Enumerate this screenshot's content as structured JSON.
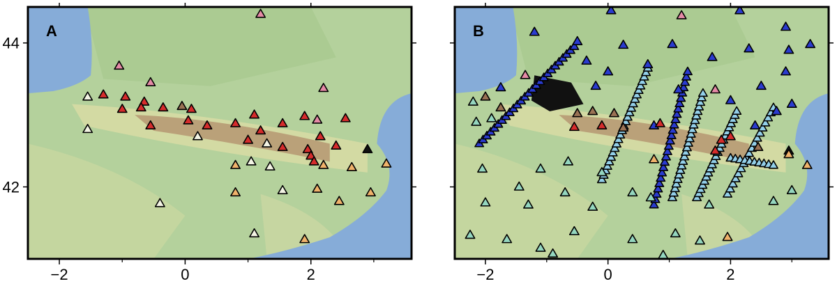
{
  "figure": {
    "colors": {
      "sea": "#86acd8",
      "lowland": "#b4d19c",
      "plain": "#a7c98f",
      "hills": "#d8dca5",
      "mountain": "#b79a74",
      "frame": "#000000"
    }
  },
  "panels": [
    {
      "id": "A",
      "label": "A",
      "x_ticks": [
        "−2",
        "0",
        "2"
      ],
      "y_ticks": [
        "44",
        "42"
      ],
      "x_tick_values": [
        -2,
        0,
        2
      ],
      "y_tick_values": [
        44,
        42
      ],
      "xlim": [
        -2.5,
        3.6
      ],
      "ylim": [
        41.0,
        44.5
      ],
      "stations": [
        {
          "lon": 1.2,
          "lat": 44.4,
          "c": "pink"
        },
        {
          "lon": -1.05,
          "lat": 43.68,
          "c": "pink"
        },
        {
          "lon": -0.55,
          "lat": 43.45,
          "c": "pink"
        },
        {
          "lon": 2.2,
          "lat": 43.37,
          "c": "pink"
        },
        {
          "lon": -1.55,
          "lat": 43.25,
          "c": "white"
        },
        {
          "lon": -1.3,
          "lat": 43.28,
          "c": "red"
        },
        {
          "lon": -0.95,
          "lat": 43.25,
          "c": "red"
        },
        {
          "lon": -0.65,
          "lat": 43.18,
          "c": "red"
        },
        {
          "lon": -1.0,
          "lat": 43.08,
          "c": "red"
        },
        {
          "lon": -0.7,
          "lat": 43.1,
          "c": "red"
        },
        {
          "lon": -0.35,
          "lat": 43.1,
          "c": "red"
        },
        {
          "lon": -0.05,
          "lat": 43.12,
          "c": "brown"
        },
        {
          "lon": 0.1,
          "lat": 43.08,
          "c": "red"
        },
        {
          "lon": 1.1,
          "lat": 43.0,
          "c": "red"
        },
        {
          "lon": 1.9,
          "lat": 42.98,
          "c": "red"
        },
        {
          "lon": 2.1,
          "lat": 42.93,
          "c": "pink"
        },
        {
          "lon": 2.55,
          "lat": 42.95,
          "c": "red"
        },
        {
          "lon": 1.55,
          "lat": 42.88,
          "c": "red"
        },
        {
          "lon": 0.8,
          "lat": 42.88,
          "c": "red"
        },
        {
          "lon": 0.35,
          "lat": 42.85,
          "c": "red"
        },
        {
          "lon": 0.05,
          "lat": 42.92,
          "c": "red"
        },
        {
          "lon": -0.55,
          "lat": 42.85,
          "c": "red"
        },
        {
          "lon": -1.55,
          "lat": 42.8,
          "c": "white"
        },
        {
          "lon": 1.2,
          "lat": 42.78,
          "c": "red"
        },
        {
          "lon": 0.2,
          "lat": 42.7,
          "c": "white"
        },
        {
          "lon": 2.15,
          "lat": 42.7,
          "c": "red"
        },
        {
          "lon": 1.0,
          "lat": 42.65,
          "c": "red"
        },
        {
          "lon": 1.3,
          "lat": 42.6,
          "c": "white"
        },
        {
          "lon": 2.4,
          "lat": 42.57,
          "c": "red"
        },
        {
          "lon": 1.55,
          "lat": 42.55,
          "c": "red"
        },
        {
          "lon": 1.95,
          "lat": 42.52,
          "c": "red"
        },
        {
          "lon": 2.9,
          "lat": 42.52,
          "c": "black"
        },
        {
          "lon": 2.0,
          "lat": 42.43,
          "c": "red"
        },
        {
          "lon": 1.05,
          "lat": 42.35,
          "c": "white"
        },
        {
          "lon": 2.05,
          "lat": 42.35,
          "c": "red"
        },
        {
          "lon": 0.8,
          "lat": 42.3,
          "c": "orange"
        },
        {
          "lon": 1.35,
          "lat": 42.28,
          "c": "white"
        },
        {
          "lon": 2.2,
          "lat": 42.3,
          "c": "orange"
        },
        {
          "lon": 2.65,
          "lat": 42.27,
          "c": "orange"
        },
        {
          "lon": 3.2,
          "lat": 42.32,
          "c": "orange"
        },
        {
          "lon": 2.1,
          "lat": 41.97,
          "c": "orange"
        },
        {
          "lon": 0.8,
          "lat": 41.92,
          "c": "orange"
        },
        {
          "lon": 1.55,
          "lat": 41.95,
          "c": "white"
        },
        {
          "lon": 2.95,
          "lat": 41.92,
          "c": "orange"
        },
        {
          "lon": -0.4,
          "lat": 41.77,
          "c": "white"
        },
        {
          "lon": 2.45,
          "lat": 41.8,
          "c": "orange"
        },
        {
          "lon": 1.1,
          "lat": 41.35,
          "c": "white"
        },
        {
          "lon": 1.9,
          "lat": 41.27,
          "c": "orange"
        }
      ],
      "lines": []
    },
    {
      "id": "B",
      "label": "B",
      "x_ticks": [
        "−2",
        "0",
        "2"
      ],
      "y_ticks": [],
      "x_tick_values": [
        -2,
        0,
        2
      ],
      "y_tick_values": [
        44,
        42
      ],
      "xlim": [
        -2.5,
        3.6
      ],
      "ylim": [
        41.0,
        44.5
      ],
      "stations": [
        {
          "lon": 0.05,
          "lat": 44.45,
          "c": "blue"
        },
        {
          "lon": 2.15,
          "lat": 44.45,
          "c": "blue"
        },
        {
          "lon": 1.2,
          "lat": 44.38,
          "c": "pink"
        },
        {
          "lon": -1.2,
          "lat": 44.15,
          "c": "blue"
        },
        {
          "lon": -0.5,
          "lat": 44.02,
          "c": "blue"
        },
        {
          "lon": 0.25,
          "lat": 43.97,
          "c": "blue"
        },
        {
          "lon": 1.05,
          "lat": 43.98,
          "c": "blue"
        },
        {
          "lon": 2.3,
          "lat": 43.92,
          "c": "blue"
        },
        {
          "lon": 1.7,
          "lat": 43.8,
          "c": "blue"
        },
        {
          "lon": 2.9,
          "lat": 44.22,
          "c": "blue"
        },
        {
          "lon": 2.95,
          "lat": 43.9,
          "c": "blue"
        },
        {
          "lon": 3.3,
          "lat": 43.98,
          "c": "blue"
        },
        {
          "lon": 0.65,
          "lat": 43.7,
          "c": "blue"
        },
        {
          "lon": -0.35,
          "lat": 43.75,
          "c": "blue"
        },
        {
          "lon": 0.0,
          "lat": 43.6,
          "c": "blue"
        },
        {
          "lon": 2.9,
          "lat": 43.6,
          "c": "blue"
        },
        {
          "lon": -1.35,
          "lat": 43.55,
          "c": "pink"
        },
        {
          "lon": -0.2,
          "lat": 43.4,
          "c": "blue"
        },
        {
          "lon": 2.5,
          "lat": 43.4,
          "c": "blue"
        },
        {
          "lon": 1.15,
          "lat": 43.35,
          "c": "blue"
        },
        {
          "lon": -1.75,
          "lat": 43.38,
          "c": "blue"
        },
        {
          "lon": 1.75,
          "lat": 43.35,
          "c": "pink"
        },
        {
          "lon": 2.0,
          "lat": 43.2,
          "c": "blue"
        },
        {
          "lon": 3.0,
          "lat": 43.15,
          "c": "blue"
        },
        {
          "lon": 2.75,
          "lat": 43.05,
          "c": "blue"
        },
        {
          "lon": -2.2,
          "lat": 43.18,
          "c": "teal"
        },
        {
          "lon": -2.0,
          "lat": 43.25,
          "c": "brown"
        },
        {
          "lon": -1.75,
          "lat": 43.1,
          "c": "brown"
        },
        {
          "lon": -2.15,
          "lat": 42.9,
          "c": "teal"
        },
        {
          "lon": -1.9,
          "lat": 42.95,
          "c": "teal"
        },
        {
          "lon": -0.5,
          "lat": 43.02,
          "c": "brown"
        },
        {
          "lon": -0.25,
          "lat": 43.05,
          "c": "brown"
        },
        {
          "lon": 0.1,
          "lat": 43.02,
          "c": "brown"
        },
        {
          "lon": -0.1,
          "lat": 42.85,
          "c": "red"
        },
        {
          "lon": 0.25,
          "lat": 42.82,
          "c": "brown"
        },
        {
          "lon": -0.55,
          "lat": 42.83,
          "c": "red"
        },
        {
          "lon": 0.75,
          "lat": 42.85,
          "c": "blue"
        },
        {
          "lon": 0.85,
          "lat": 42.88,
          "c": "red"
        },
        {
          "lon": 2.4,
          "lat": 42.85,
          "c": "blue"
        },
        {
          "lon": 2.0,
          "lat": 42.7,
          "c": "red"
        },
        {
          "lon": 2.45,
          "lat": 42.55,
          "c": "brown"
        },
        {
          "lon": 1.85,
          "lat": 42.65,
          "c": "red"
        },
        {
          "lon": 2.95,
          "lat": 42.5,
          "c": "black"
        },
        {
          "lon": 1.75,
          "lat": 42.5,
          "c": "red"
        },
        {
          "lon": 0.75,
          "lat": 42.38,
          "c": "orange"
        },
        {
          "lon": 3.25,
          "lat": 42.3,
          "c": "orange"
        },
        {
          "lon": 2.95,
          "lat": 42.45,
          "c": "orange"
        },
        {
          "lon": -2.05,
          "lat": 42.25,
          "c": "teal"
        },
        {
          "lon": -1.1,
          "lat": 42.25,
          "c": "teal"
        },
        {
          "lon": -0.65,
          "lat": 42.35,
          "c": "teal"
        },
        {
          "lon": -0.1,
          "lat": 42.2,
          "c": "teal"
        },
        {
          "lon": -1.45,
          "lat": 42.0,
          "c": "teal"
        },
        {
          "lon": -0.7,
          "lat": 41.92,
          "c": "teal"
        },
        {
          "lon": 0.4,
          "lat": 41.92,
          "c": "teal"
        },
        {
          "lon": -2.0,
          "lat": 41.78,
          "c": "teal"
        },
        {
          "lon": -1.3,
          "lat": 41.75,
          "c": "teal"
        },
        {
          "lon": -0.25,
          "lat": 41.72,
          "c": "teal"
        },
        {
          "lon": 0.7,
          "lat": 41.85,
          "c": "teal"
        },
        {
          "lon": 3.0,
          "lat": 41.95,
          "c": "teal"
        },
        {
          "lon": 2.7,
          "lat": 41.8,
          "c": "teal"
        },
        {
          "lon": 1.65,
          "lat": 41.75,
          "c": "teal"
        },
        {
          "lon": -2.25,
          "lat": 41.33,
          "c": "teal"
        },
        {
          "lon": -1.65,
          "lat": 41.27,
          "c": "teal"
        },
        {
          "lon": -1.1,
          "lat": 41.15,
          "c": "teal"
        },
        {
          "lon": -0.55,
          "lat": 41.38,
          "c": "teal"
        },
        {
          "lon": -0.9,
          "lat": 41.07,
          "c": "teal"
        },
        {
          "lon": 0.4,
          "lat": 41.27,
          "c": "teal"
        },
        {
          "lon": 1.1,
          "lat": 41.35,
          "c": "teal"
        },
        {
          "lon": 1.5,
          "lat": 41.25,
          "c": "teal"
        },
        {
          "lon": 0.9,
          "lat": 41.05,
          "c": "teal"
        },
        {
          "lon": 1.95,
          "lat": 41.3,
          "c": "orange"
        }
      ],
      "lines": [
        {
          "c": "blue",
          "n": 26,
          "from": [
            -2.1,
            42.6
          ],
          "to": [
            -0.55,
            43.95
          ]
        },
        {
          "c": "lightblue",
          "n": 26,
          "from": [
            -0.1,
            42.1
          ],
          "to": [
            0.65,
            43.65
          ]
        },
        {
          "c": "blue",
          "n": 26,
          "from": [
            0.75,
            41.75
          ],
          "to": [
            1.3,
            43.6
          ]
        },
        {
          "c": "lightblue",
          "n": 24,
          "from": [
            1.05,
            41.85
          ],
          "to": [
            1.55,
            43.3
          ]
        },
        {
          "c": "lightblue",
          "n": 22,
          "from": [
            1.45,
            41.85
          ],
          "to": [
            2.1,
            43.05
          ]
        },
        {
          "c": "lightblue",
          "n": 18,
          "from": [
            1.95,
            41.9
          ],
          "to": [
            2.7,
            43.1
          ]
        },
        {
          "c": "lightblue",
          "n": 10,
          "from": [
            2.0,
            42.4
          ],
          "to": [
            2.7,
            42.3
          ]
        }
      ]
    }
  ]
}
